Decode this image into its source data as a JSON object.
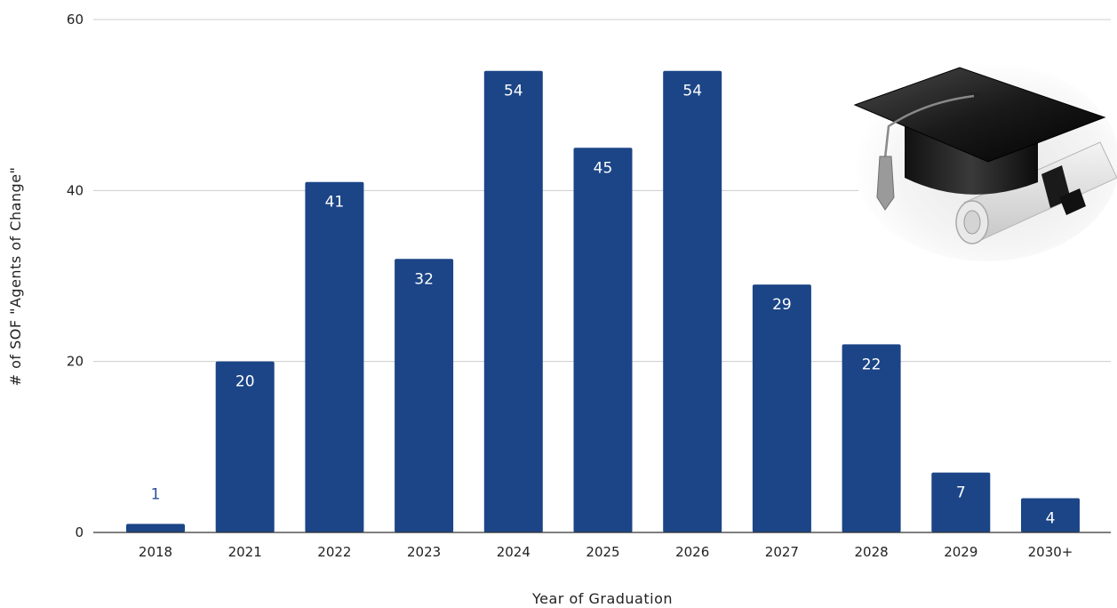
{
  "chart_data": {
    "type": "bar",
    "title": "",
    "xlabel": "Year of Graduation",
    "ylabel": "# of SOF \"Agents of Change\"",
    "categories": [
      "2018",
      "2021",
      "2022",
      "2023",
      "2024",
      "2025",
      "2026",
      "2027",
      "2028",
      "2029",
      "2030+"
    ],
    "values": [
      1,
      20,
      41,
      32,
      54,
      45,
      54,
      29,
      22,
      7,
      4
    ],
    "data_labels": [
      "1",
      "20",
      "41",
      "32",
      "54",
      "45",
      "54",
      "29",
      "22",
      "7",
      "4"
    ],
    "ylim": [
      0,
      60
    ],
    "yticks": [
      "0",
      "20",
      "40",
      "60"
    ],
    "grid": true,
    "legend": "none",
    "bar_color": "#1c4587",
    "decoration": "graduation-cap-and-diploma"
  }
}
